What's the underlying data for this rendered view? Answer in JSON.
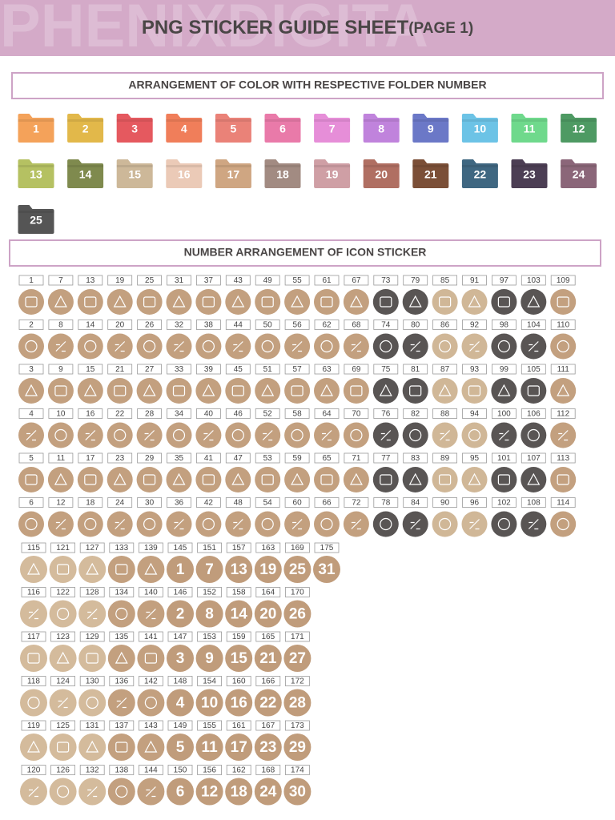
{
  "header": {
    "watermark": "PHENIXDIGITA",
    "title": "PNG STICKER GUIDE SHEET",
    "subtitle": "(PAGE 1)"
  },
  "color_section": {
    "title": "ARRANGEMENT OF COLOR WITH RESPECTIVE FOLDER NUMBER",
    "folders": [
      {
        "label": "1",
        "color": "#f4a25a"
      },
      {
        "label": "2",
        "color": "#e2b84a"
      },
      {
        "label": "3",
        "color": "#e5595f"
      },
      {
        "label": "4",
        "color": "#f07e5a"
      },
      {
        "label": "5",
        "color": "#ea8278"
      },
      {
        "label": "6",
        "color": "#e97aa9"
      },
      {
        "label": "7",
        "color": "#e68ed8"
      },
      {
        "label": "8",
        "color": "#c083dc"
      },
      {
        "label": "9",
        "color": "#6b78c7"
      },
      {
        "label": "10",
        "color": "#6cc3e6"
      },
      {
        "label": "11",
        "color": "#6fd98c"
      },
      {
        "label": "12",
        "color": "#4e9a63"
      },
      {
        "label": "13",
        "color": "#b5c162"
      },
      {
        "label": "14",
        "color": "#7f8a4e"
      },
      {
        "label": "15",
        "color": "#cdb899"
      },
      {
        "label": "16",
        "color": "#ebcab7"
      },
      {
        "label": "17",
        "color": "#cfa682"
      },
      {
        "label": "18",
        "color": "#a28b82"
      },
      {
        "label": "19",
        "color": "#cf9fa5"
      },
      {
        "label": "20",
        "color": "#b06f62"
      },
      {
        "label": "21",
        "color": "#7b4f37"
      },
      {
        "label": "22",
        "color": "#3f6781"
      },
      {
        "label": "23",
        "color": "#4c3e54"
      },
      {
        "label": "24",
        "color": "#8b6679"
      },
      {
        "label": "25",
        "color": "#555555"
      }
    ]
  },
  "icon_sticker": {
    "title": "NUMBER ARRANGEMENT OF ICON STICKER",
    "columns": [
      {
        "color": "#c3a07f",
        "numbers": [
          "1",
          "2",
          "3",
          "4",
          "5",
          "6"
        ]
      },
      {
        "color": "#c3a07f",
        "numbers": [
          "7",
          "8",
          "9",
          "10",
          "11",
          "12"
        ]
      },
      {
        "color": "#c3a07f",
        "numbers": [
          "13",
          "14",
          "15",
          "16",
          "17",
          "18"
        ]
      },
      {
        "color": "#c3a07f",
        "numbers": [
          "19",
          "20",
          "21",
          "22",
          "23",
          "24"
        ]
      },
      {
        "color": "#c3a07f",
        "numbers": [
          "25",
          "26",
          "27",
          "28",
          "29",
          "30"
        ]
      },
      {
        "color": "#c3a07f",
        "numbers": [
          "31",
          "32",
          "33",
          "34",
          "35",
          "36"
        ]
      },
      {
        "color": "#c3a07f",
        "numbers": [
          "37",
          "38",
          "39",
          "40",
          "41",
          "42"
        ]
      },
      {
        "color": "#c3a07f",
        "numbers": [
          "43",
          "44",
          "45",
          "46",
          "47",
          "48"
        ]
      },
      {
        "color": "#c3a07f",
        "numbers": [
          "49",
          "50",
          "51",
          "52",
          "53",
          "54"
        ]
      },
      {
        "color": "#c3a07f",
        "numbers": [
          "55",
          "56",
          "57",
          "58",
          "59",
          "60"
        ]
      },
      {
        "color": "#c3a07f",
        "numbers": [
          "61",
          "62",
          "63",
          "64",
          "65",
          "66"
        ]
      },
      {
        "color": "#c3a07f",
        "numbers": [
          "67",
          "68",
          "69",
          "70",
          "71",
          "72"
        ]
      },
      {
        "color": "#595554",
        "numbers": [
          "73",
          "74",
          "75",
          "76",
          "77",
          "78"
        ]
      },
      {
        "color": "#595554",
        "numbers": [
          "79",
          "80",
          "81",
          "82",
          "83",
          "84"
        ]
      },
      {
        "color": "#d0b797",
        "numbers": [
          "85",
          "86",
          "87",
          "88",
          "89",
          "90"
        ]
      },
      {
        "color": "#d0b797",
        "numbers": [
          "91",
          "92",
          "93",
          "94",
          "95",
          "96"
        ]
      },
      {
        "color": "#595554",
        "numbers": [
          "97",
          "98",
          "99",
          "100",
          "101",
          "102"
        ]
      },
      {
        "color": "#595554",
        "numbers": [
          "103",
          "104",
          "105",
          "106",
          "107",
          "108"
        ]
      },
      {
        "color": "#c3a07f",
        "numbers": [
          "109",
          "110",
          "111",
          "112",
          "113",
          "114"
        ]
      },
      {
        "color": "#d4bb9c",
        "numbers": [
          "115",
          "116",
          "117",
          "118",
          "119",
          "120"
        ]
      },
      {
        "color": "#d4bb9c",
        "numbers": [
          "121",
          "122",
          "123",
          "124",
          "125",
          "126"
        ]
      },
      {
        "color": "#d4bb9c",
        "numbers": [
          "127",
          "128",
          "129",
          "130",
          "131",
          "132"
        ]
      },
      {
        "color": "#c3a07f",
        "numbers": [
          "133",
          "134",
          "135",
          "136",
          "137",
          "138"
        ]
      },
      {
        "color": "#c3a07f",
        "numbers": [
          "139",
          "140",
          "141",
          "142",
          "143",
          "144"
        ]
      },
      {
        "color": "#c09c7b",
        "numbers": [
          "145",
          "146",
          "147",
          "148",
          "149",
          "150"
        ],
        "glyphs": [
          "1",
          "2",
          "3",
          "4",
          "5",
          "6"
        ]
      },
      {
        "color": "#c09c7b",
        "numbers": [
          "151",
          "152",
          "153",
          "154",
          "155",
          "156"
        ],
        "glyphs": [
          "7",
          "8",
          "9",
          "10",
          "11",
          "12"
        ]
      },
      {
        "color": "#c09c7b",
        "numbers": [
          "157",
          "158",
          "159",
          "160",
          "161",
          "162"
        ],
        "glyphs": [
          "13",
          "14",
          "15",
          "16",
          "17",
          "18"
        ]
      },
      {
        "color": "#c09c7b",
        "numbers": [
          "163",
          "164",
          "165",
          "166",
          "167",
          "168"
        ],
        "glyphs": [
          "19",
          "20",
          "21",
          "22",
          "23",
          "24"
        ]
      },
      {
        "color": "#c09c7b",
        "numbers": [
          "169",
          "170",
          "171",
          "172",
          "173",
          "174"
        ],
        "glyphs": [
          "25",
          "26",
          "27",
          "28",
          "29",
          "30"
        ]
      },
      {
        "color": "#c09c7b",
        "numbers": [
          "175"
        ],
        "glyphs": [
          "31"
        ]
      }
    ]
  }
}
